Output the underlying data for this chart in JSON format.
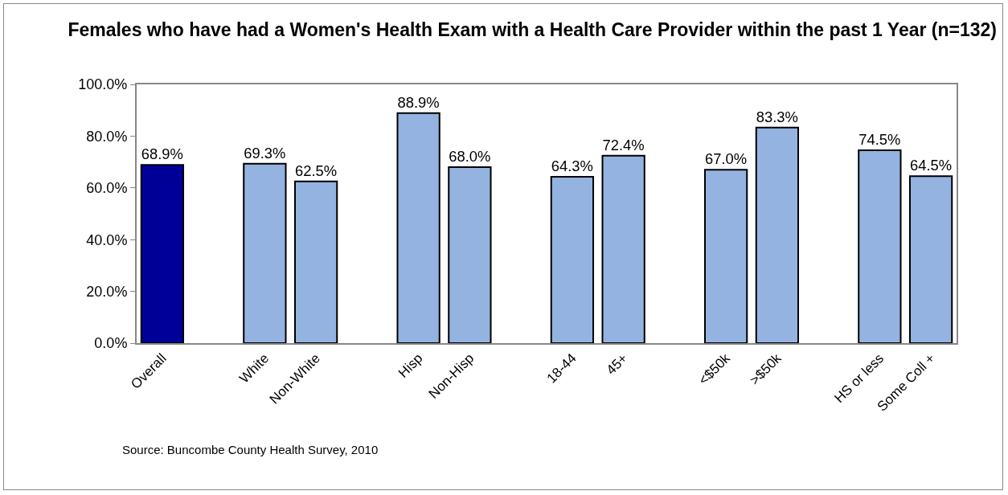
{
  "chart_data": {
    "type": "bar",
    "title": "Females who have had a Women's Health Exam with a Health Care Provider within the past 1 Year (n=132)",
    "categories": [
      "Overall",
      null,
      "White",
      "Non-White",
      null,
      "Hisp",
      "Non-Hisp",
      null,
      "18-44",
      "45+",
      null,
      "<$50k",
      ">$50k",
      null,
      "HS or less",
      "Some Coll +"
    ],
    "values": [
      68.9,
      null,
      69.3,
      62.5,
      null,
      88.9,
      68.0,
      null,
      64.3,
      72.4,
      null,
      67.0,
      83.3,
      null,
      74.5,
      64.5
    ],
    "colors": [
      "#000099",
      "#95b3e0",
      "#95b3e0",
      "#95b3e0",
      "#95b3e0",
      "#95b3e0",
      "#95b3e0",
      "#95b3e0",
      "#95b3e0",
      "#95b3e0",
      "#95b3e0",
      "#95b3e0",
      "#95b3e0",
      "#95b3e0",
      "#95b3e0",
      "#95b3e0"
    ],
    "value_labels": [
      "68.9%",
      null,
      "69.3%",
      "62.5%",
      null,
      "88.9%",
      "68.0%",
      null,
      "64.3%",
      "72.4%",
      null,
      "67.0%",
      "83.3%",
      null,
      "74.5%",
      "64.5%"
    ],
    "ylim": [
      0,
      100
    ],
    "yticks": [
      {
        "value": 0,
        "label": "0.0%"
      },
      {
        "value": 20,
        "label": "20.0%"
      },
      {
        "value": 40,
        "label": "40.0%"
      },
      {
        "value": 60,
        "label": "60.0%"
      },
      {
        "value": 80,
        "label": "80.0%"
      },
      {
        "value": 100,
        "label": "100.0%"
      }
    ],
    "grid": false,
    "legend": false,
    "annotations": [
      "Source: Buncombe County Health Survey, 2010"
    ]
  }
}
